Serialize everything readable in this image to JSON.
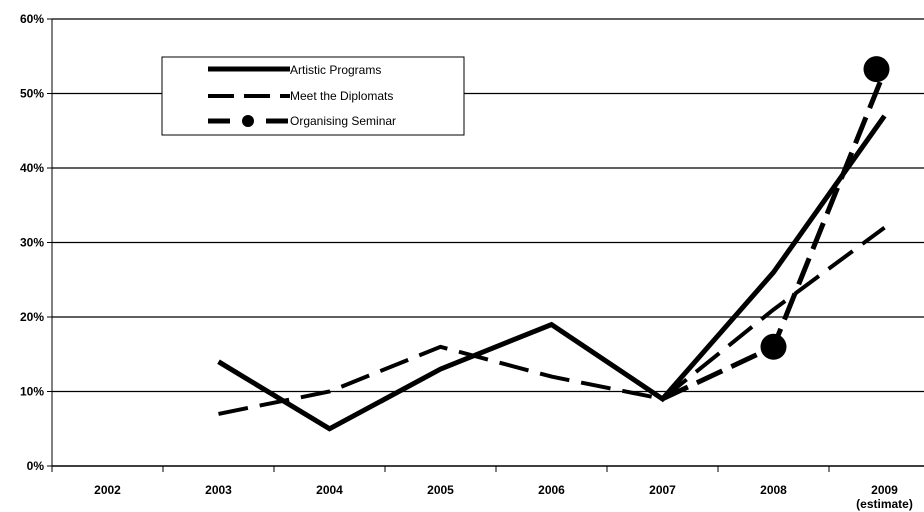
{
  "chart_data": {
    "type": "line",
    "categories": [
      "2002",
      "2003",
      "2004",
      "2005",
      "2006",
      "2007",
      "2008",
      "2009"
    ],
    "category_sublabels": [
      "",
      "",
      "",
      "",
      "",
      "",
      "",
      "(estimate)"
    ],
    "ylim": [
      0,
      60
    ],
    "yticks": [
      "0%",
      "10%",
      "20%",
      "30%",
      "40%",
      "50%",
      "60%"
    ],
    "grid": "horizontal",
    "legend_position": "top-left",
    "series": [
      {
        "name": "Artistic Programs",
        "style": "solid-thick",
        "values": [
          null,
          14,
          5,
          13,
          19,
          9,
          26,
          47
        ]
      },
      {
        "name": "Meet the Diplomats",
        "style": "long-dash",
        "values": [
          null,
          7,
          10,
          16,
          12,
          9,
          21,
          32
        ]
      },
      {
        "name": "Organising Seminar",
        "style": "dash-dot-marker",
        "values": [
          null,
          null,
          null,
          null,
          null,
          9,
          16,
          53
        ]
      }
    ],
    "colors": {
      "line": "#000000",
      "grid": "#000000",
      "background": "#ffffff"
    }
  }
}
